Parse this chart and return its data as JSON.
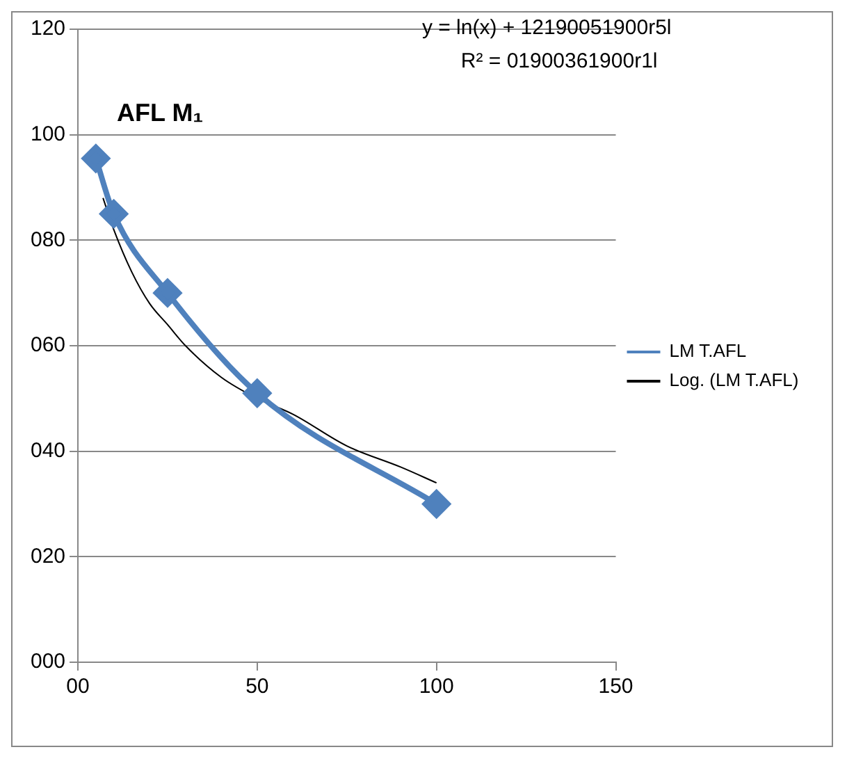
{
  "chart_data": {
    "type": "line",
    "title": "AFL M₁",
    "annotations": [
      "y = ln(x) + 12190051900r5l",
      "R² = 01900361900r1l"
    ],
    "series": [
      {
        "name": "LM T.AFL",
        "color": "#4f81bd",
        "x": [
          5,
          10,
          25,
          50,
          100
        ],
        "values": [
          95.5,
          85,
          70,
          51,
          30
        ],
        "marker": "diamond",
        "line_style": "solid"
      },
      {
        "name": "Log. (LM T.AFL)",
        "color": "#000000",
        "x": [
          7,
          10,
          15,
          20,
          25,
          30,
          40,
          50,
          60,
          75,
          90,
          100
        ],
        "values": [
          88,
          82,
          74,
          68,
          64,
          60,
          54,
          50,
          47,
          41,
          37,
          34
        ],
        "marker": "none",
        "line_style": "solid"
      }
    ],
    "xlim": [
      0,
      150
    ],
    "xticks": [
      {
        "value": 0,
        "label": "00"
      },
      50,
      100,
      150
    ],
    "ylim": [
      0,
      120
    ],
    "yticks": [
      {
        "value": 0,
        "label": "000"
      },
      {
        "value": 20,
        "label": "020"
      },
      {
        "value": 40,
        "label": "040"
      },
      {
        "value": 60,
        "label": "060"
      },
      {
        "value": 80,
        "label": "080"
      },
      {
        "value": 100,
        "label": "100"
      },
      120
    ],
    "grid": "y",
    "legend": "right"
  }
}
